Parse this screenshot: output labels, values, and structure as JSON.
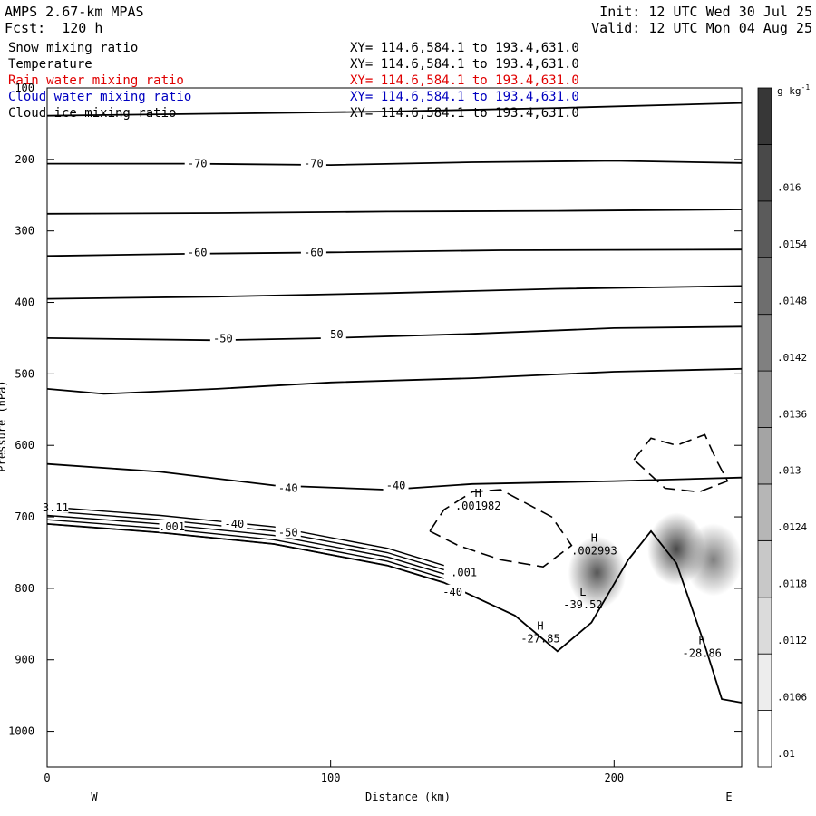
{
  "header": {
    "model": "AMPS 2.67-km MPAS",
    "forecast": "Fcst:  120 h",
    "init": "Init: 12 UTC Wed 30 Jul 25",
    "valid": "Valid: 12 UTC Mon 04 Aug 25"
  },
  "fields": [
    {
      "name": "Snow mixing ratio",
      "xy": "XY= 114.6,584.1 to 193.4,631.0",
      "color": "#000000"
    },
    {
      "name": "Temperature",
      "xy": "XY= 114.6,584.1 to 193.4,631.0",
      "color": "#000000"
    },
    {
      "name": "Rain water mixing ratio",
      "xy": "XY= 114.6,584.1 to 193.4,631.0",
      "color": "#e00000"
    },
    {
      "name": "Cloud water mixing ratio",
      "xy": "XY= 114.6,584.1 to 193.4,631.0",
      "color": "#0000c0"
    },
    {
      "name": "Cloud ice mixing ratio",
      "xy": "XY= 114.6,584.1 to 193.4,631.0",
      "color": "#000000"
    }
  ],
  "chart_data": {
    "type": "contour-cross-section",
    "xlabel": "Distance (km)",
    "ylabel": "Pressure (hPa)",
    "xlim": [
      0,
      245
    ],
    "ylim": [
      100,
      1050
    ],
    "x_ticks": [
      0,
      100,
      200
    ],
    "y_ticks": [
      100,
      200,
      300,
      400,
      500,
      600,
      700,
      800,
      900,
      1000
    ],
    "x_end_labels": {
      "left": "W",
      "right": "E"
    },
    "colorbar": {
      "unit_base": "g kg",
      "unit_exp": "-1",
      "levels": [
        ".01",
        ".0106",
        ".0112",
        ".0118",
        ".0124",
        ".013",
        ".0136",
        ".0142",
        ".0148",
        ".0154",
        ".016"
      ]
    },
    "temperature_contours": [
      {
        "label": "",
        "points": [
          [
            0,
            139
          ],
          [
            60,
            136
          ],
          [
            120,
            133
          ],
          [
            180,
            128
          ],
          [
            245,
            121
          ]
        ]
      },
      {
        "label": "-70",
        "points": [
          [
            0,
            206
          ],
          [
            50,
            206
          ],
          [
            100,
            208
          ],
          [
            150,
            204
          ],
          [
            200,
            202
          ],
          [
            245,
            205
          ]
        ]
      },
      {
        "label": "",
        "points": [
          [
            0,
            276
          ],
          [
            60,
            275
          ],
          [
            120,
            273
          ],
          [
            180,
            272
          ],
          [
            245,
            270
          ]
        ]
      },
      {
        "label": "-60",
        "points": [
          [
            0,
            335
          ],
          [
            50,
            332
          ],
          [
            100,
            330
          ],
          [
            160,
            327
          ],
          [
            245,
            326
          ]
        ]
      },
      {
        "label": "",
        "points": [
          [
            0,
            395
          ],
          [
            60,
            392
          ],
          [
            120,
            387
          ],
          [
            180,
            381
          ],
          [
            245,
            377
          ]
        ]
      },
      {
        "label": "-50",
        "points": [
          [
            0,
            450
          ],
          [
            60,
            453
          ],
          [
            100,
            450
          ],
          [
            150,
            444
          ],
          [
            200,
            436
          ],
          [
            245,
            434
          ]
        ]
      },
      {
        "label": "",
        "points": [
          [
            0,
            521
          ],
          [
            20,
            528
          ],
          [
            60,
            521
          ],
          [
            100,
            512
          ],
          [
            150,
            506
          ],
          [
            200,
            497
          ],
          [
            245,
            493
          ]
        ]
      },
      {
        "label": "-40",
        "points": [
          [
            0,
            626
          ],
          [
            40,
            637
          ],
          [
            80,
            656
          ],
          [
            120,
            662
          ],
          [
            150,
            654
          ],
          [
            200,
            650
          ],
          [
            245,
            645
          ]
        ]
      }
    ],
    "contour_labels": [
      {
        "text": "-70",
        "x": 53,
        "p": 206
      },
      {
        "text": "-70",
        "x": 94,
        "p": 206
      },
      {
        "text": "-60",
        "x": 53,
        "p": 330
      },
      {
        "text": "-60",
        "x": 94,
        "p": 330
      },
      {
        "text": "-50",
        "x": 62,
        "p": 451
      },
      {
        "text": "-50",
        "x": 101,
        "p": 445
      },
      {
        "text": "-40",
        "x": 85,
        "p": 660
      },
      {
        "text": "-40",
        "x": 123,
        "p": 656
      },
      {
        "text": "-40",
        "x": 66,
        "p": 710
      },
      {
        "text": "-50",
        "x": 85,
        "p": 722
      },
      {
        "text": "-40",
        "x": 143,
        "p": 805
      },
      {
        "text": ".001",
        "x": 44,
        "p": 714
      },
      {
        "text": ".001",
        "x": 147,
        "p": 778
      },
      {
        "text": "3.11",
        "x": 3,
        "p": 687
      }
    ],
    "extrema": [
      {
        "kind": "H",
        "value": ".001982",
        "x": 152,
        "p": 672
      },
      {
        "kind": "H",
        "value": ".002993",
        "x": 193,
        "p": 735
      },
      {
        "kind": "L",
        "value": "-39.52",
        "x": 189,
        "p": 810
      },
      {
        "kind": "H",
        "value": "-27.85",
        "x": 174,
        "p": 858
      },
      {
        "kind": "H",
        "value": "-28.86",
        "x": 231,
        "p": 878
      }
    ],
    "terrain_top": [
      [
        0,
        710
      ],
      [
        40,
        722
      ],
      [
        80,
        738
      ],
      [
        120,
        768
      ],
      [
        140,
        792
      ],
      [
        165,
        838
      ],
      [
        180,
        888
      ],
      [
        192,
        848
      ],
      [
        205,
        760
      ],
      [
        213,
        720
      ],
      [
        222,
        765
      ],
      [
        232,
        880
      ],
      [
        238,
        955
      ],
      [
        245,
        960
      ]
    ],
    "snow_maxima": [
      {
        "x": 194,
        "p": 778,
        "max": 0.0155
      },
      {
        "x": 222,
        "p": 745,
        "max": 0.016
      },
      {
        "x": 235,
        "p": 760,
        "max": 0.014
      }
    ]
  }
}
